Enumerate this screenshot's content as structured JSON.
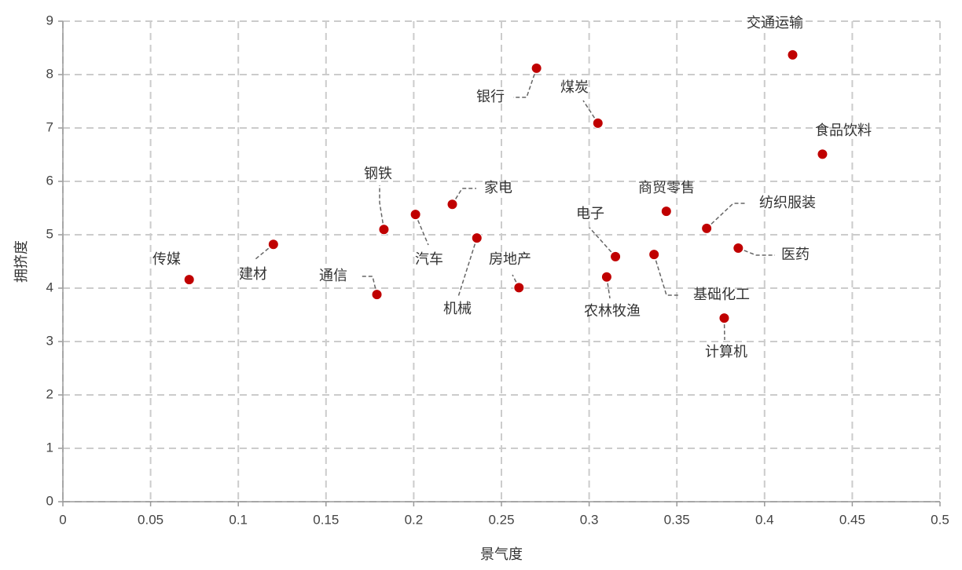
{
  "chart_data": {
    "type": "scatter",
    "x_label": "景气度",
    "y_label": "拥挤度",
    "color": "#c00000",
    "grid": true,
    "xlim": [
      0,
      0.5
    ],
    "xticks": [
      0,
      0.05,
      0.1,
      0.15,
      0.2,
      0.25,
      0.3,
      0.35,
      0.4,
      0.45,
      0.5
    ],
    "ylim": [
      0,
      9
    ],
    "yticks": [
      0,
      1,
      2,
      3,
      4,
      5,
      6,
      7,
      8,
      9
    ],
    "point_labels": [
      "传媒",
      "建材",
      "通信",
      "钢铁",
      "汽车",
      "家电",
      "机械",
      "房地产",
      "银行",
      "煤炭",
      "电子",
      "农林牧渔",
      "基础化工",
      "商贸零售",
      "纺织服装",
      "医药",
      "计算机",
      "交通运输",
      "食品饮料"
    ],
    "x": [
      0.072,
      0.12,
      0.179,
      0.183,
      0.201,
      0.222,
      0.236,
      0.26,
      0.27,
      0.305,
      0.315,
      0.31,
      0.337,
      0.344,
      0.367,
      0.385,
      0.377,
      0.416,
      0.433
    ],
    "y": [
      4.16,
      4.82,
      3.88,
      5.1,
      5.38,
      5.57,
      4.94,
      4.01,
      8.12,
      7.09,
      4.59,
      4.21,
      4.63,
      5.44,
      5.12,
      4.75,
      3.44,
      8.37,
      6.51
    ]
  }
}
